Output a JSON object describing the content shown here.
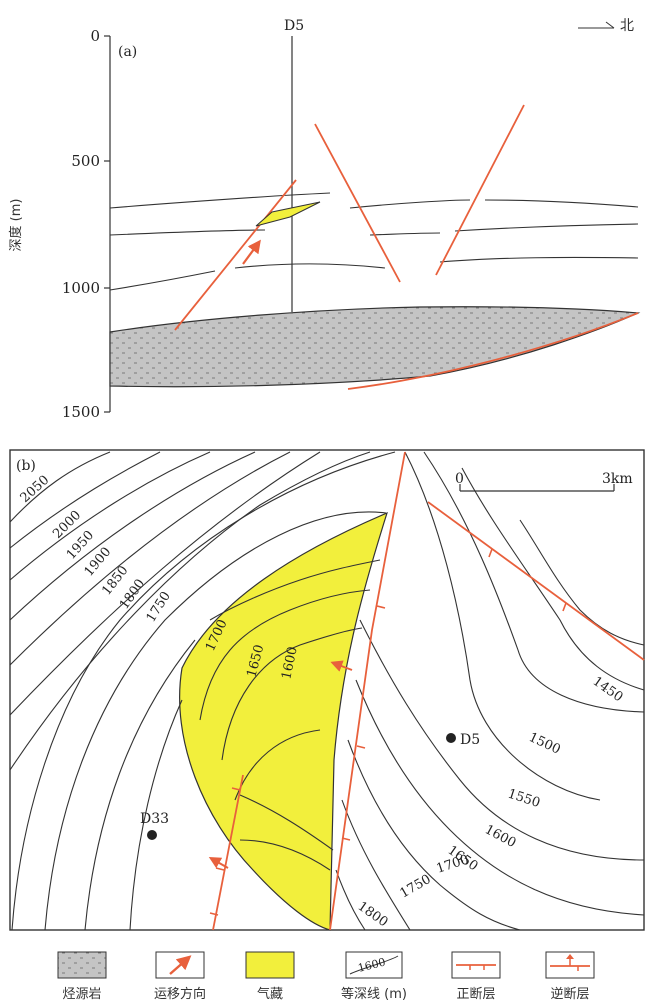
{
  "panel_a": {
    "label": "(a)",
    "well": "D5",
    "north": "北",
    "axis_label": "深度 (m)",
    "ticks": [
      "0",
      "500",
      "1000",
      "1500"
    ]
  },
  "panel_b": {
    "label": "(b)",
    "scale_zero": "0",
    "scale_end": "3km",
    "wells": [
      "D33",
      "D5"
    ],
    "contour_labels_left": [
      "2050",
      "2000",
      "1950",
      "1900",
      "1850",
      "1800",
      "1750",
      "1700",
      "1650",
      "1600"
    ],
    "contour_labels_right": [
      "1450",
      "1500",
      "1550",
      "1600",
      "1650",
      "1700",
      "1750",
      "1800"
    ]
  },
  "legend": {
    "items": [
      "烃源岩",
      "运移方向",
      "气藏",
      "等深线 (m)",
      "正断层",
      "逆断层"
    ],
    "contour_sample": "1600"
  },
  "colors": {
    "fault": "#e8603c",
    "gas": "#f2ef3c",
    "source_rock": "#c4c4c4"
  }
}
